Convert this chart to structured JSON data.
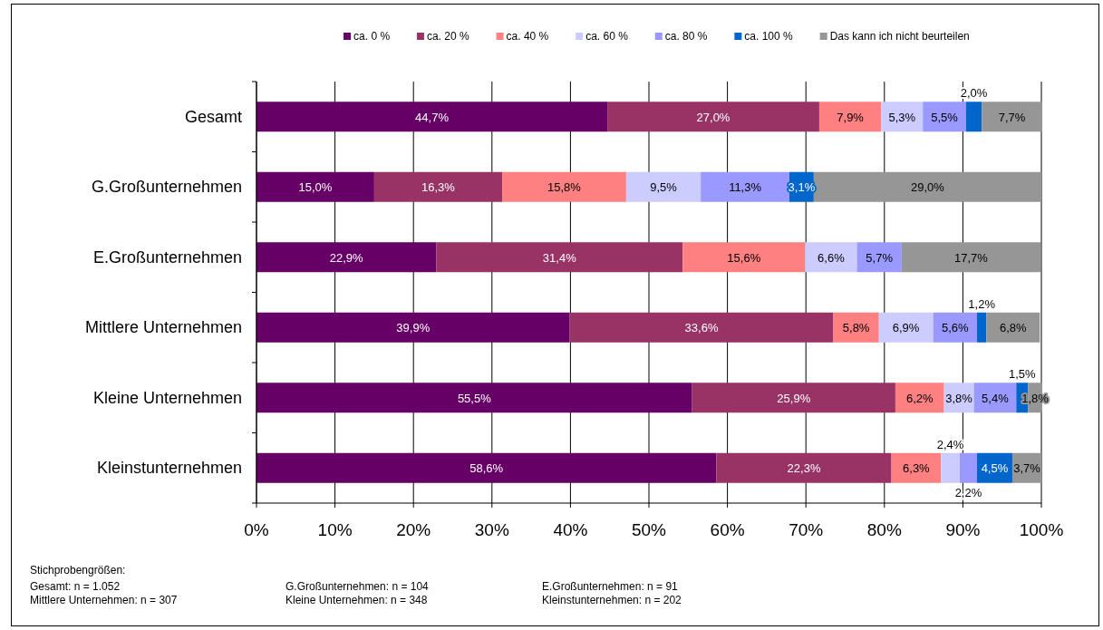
{
  "chart_data": {
    "type": "bar",
    "orientation": "horizontal",
    "stacked": true,
    "legend": "top",
    "grid": "x",
    "categories": [
      "Gesamt",
      "G.Großunternehmen",
      "E.Großunternehmen",
      "Mittlere Unternehmen",
      "Kleine Unternehmen",
      "Kleinstunternehmen"
    ],
    "xlim": [
      0,
      100
    ],
    "xticks": [
      {
        "value": 0,
        "label": "0%"
      },
      {
        "value": 10,
        "label": "10%"
      },
      {
        "value": 20,
        "label": "20%"
      },
      {
        "value": 30,
        "label": "30%"
      },
      {
        "value": 40,
        "label": "40%"
      },
      {
        "value": 50,
        "label": "50%"
      },
      {
        "value": 60,
        "label": "60%"
      },
      {
        "value": 70,
        "label": "70%"
      },
      {
        "value": 80,
        "label": "80%"
      },
      {
        "value": 90,
        "label": "90%"
      },
      {
        "value": 100,
        "label": "100%"
      }
    ],
    "series": [
      {
        "name": "ca. 0 %",
        "color": "#660066",
        "values": [
          44.7,
          15.0,
          22.9,
          39.9,
          55.5,
          58.6
        ],
        "value_labels": [
          "44,7%",
          "15,0%",
          "22,9%",
          "39,9%",
          "55,5%",
          "58,6%"
        ]
      },
      {
        "name": "ca. 20 %",
        "color": "#993366",
        "values": [
          27.0,
          16.3,
          31.4,
          33.6,
          25.9,
          22.3
        ],
        "value_labels": [
          "27,0%",
          "16,3%",
          "31,4%",
          "33,6%",
          "25,9%",
          "22,3%"
        ]
      },
      {
        "name": "ca. 40 %",
        "color": "#ff8080",
        "values": [
          7.9,
          15.8,
          15.6,
          5.8,
          6.2,
          6.3
        ],
        "value_labels": [
          "7,9%",
          "15,8%",
          "15,6%",
          "5,8%",
          "6,2%",
          "6,3%"
        ]
      },
      {
        "name": "ca. 60 %",
        "color": "#ccccff",
        "values": [
          5.3,
          9.5,
          6.6,
          6.9,
          3.8,
          2.4
        ],
        "value_labels": [
          "5,3%",
          "9,5%",
          "6,6%",
          "6,9%",
          "3,8%",
          "2,4%"
        ]
      },
      {
        "name": "ca. 80 %",
        "color": "#9999ff",
        "values": [
          5.5,
          11.3,
          5.7,
          5.6,
          5.4,
          2.2
        ],
        "value_labels": [
          "5,5%",
          "11,3%",
          "5,7%",
          "5,6%",
          "5,4%",
          "2,2%"
        ]
      },
      {
        "name": "ca. 100 %",
        "color": "#0066cc",
        "values": [
          2.0,
          3.1,
          null,
          1.2,
          1.5,
          4.5
        ],
        "value_labels": [
          "2,0%",
          "3,1%",
          null,
          "1,2%",
          "1,5%",
          "4,5%"
        ]
      },
      {
        "name": "Das kann ich nicht beurteilen",
        "color": "#969696",
        "values": [
          7.7,
          29.0,
          17.7,
          6.8,
          1.8,
          3.7
        ],
        "value_labels": [
          "7,7%",
          "29,0%",
          "17,7%",
          "6,8%",
          "1,8%",
          "3,7%"
        ]
      }
    ],
    "annotations": [
      "Stichprobengrößen:",
      "Gesamt: n = 1.052",
      "G.Großunternehmen: n = 104",
      "E.Großunternehmen: n = 91",
      "Mittlere Unternehmen: n = 307",
      "Kleine Unternehmen: n = 348",
      "Kleinstunternehmen: n = 202"
    ]
  }
}
